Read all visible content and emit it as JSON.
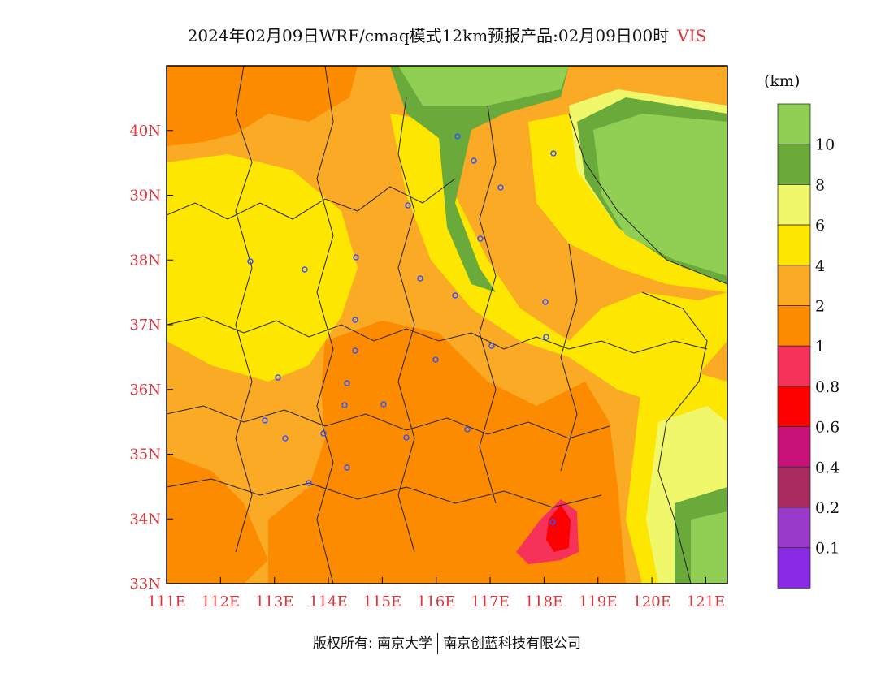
{
  "title": {
    "text": "2024年02月09日WRF/cmaq模式12km预报产品:02月09日00时",
    "variable": "VIS"
  },
  "map": {
    "x_ticks": [
      "111E",
      "112E",
      "113E",
      "114E",
      "115E",
      "116E",
      "117E",
      "118E",
      "119E",
      "120E",
      "121E"
    ],
    "y_ticks": [
      "33N",
      "34N",
      "35N",
      "36N",
      "37N",
      "38N",
      "39N",
      "40N"
    ],
    "extent": {
      "lon_min": 111.0,
      "lon_max": 121.4,
      "lat_min": 33.0,
      "lat_max": 41.0
    }
  },
  "colorbar": {
    "unit": "(km)",
    "levels": [
      "10",
      "8",
      "6",
      "4",
      "2",
      "1",
      "0.8",
      "0.6",
      "0.4",
      "0.2",
      "0.1"
    ],
    "colors": [
      "#90cf54",
      "#6aaa3a",
      "#f0f76a",
      "#fde600",
      "#fbaa25",
      "#fd8b00",
      "#f7325a",
      "#fd0000",
      "#c8127a",
      "#a82d5e",
      "#9a3ac9",
      "#8b2ae6"
    ]
  },
  "footer": {
    "left": "版权所有: 南京大学",
    "right": "南京创蓝科技有限公司"
  }
}
